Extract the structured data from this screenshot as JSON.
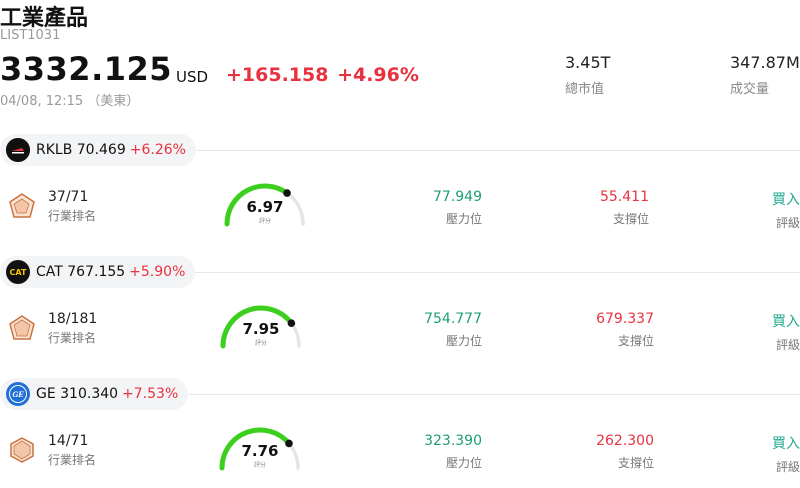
{
  "header": {
    "title": "工業產品",
    "code": "LIST1031",
    "price": "3332.125",
    "currency": "USD",
    "change": "+165.158 +4.96%",
    "timestamp": "04/08, 12:15 （美東）"
  },
  "stats": {
    "market_cap_value": "3.45T",
    "market_cap_label": "總市值",
    "volume_value": "347.87M",
    "volume_label": "成交量"
  },
  "colors": {
    "up": "#e8323f",
    "resistance": "#1e9e77",
    "rating": "#22a98e",
    "gauge_fill": "#3ccf1e",
    "gauge_track": "#e4e4ea"
  },
  "stocks": [
    {
      "ticker_price": "RKLB 70.469",
      "change_pct": "+6.26%",
      "logo_icon": "rocket-lab-logo",
      "rank": "37/71",
      "rank_label": "行業排名",
      "score": "6.97",
      "score_value": 6.97,
      "score_label": "評分",
      "resistance": "77.949",
      "resistance_label": "壓力位",
      "support": "55.411",
      "support_label": "支撐位",
      "rating": "買入",
      "rating_label": "評級"
    },
    {
      "ticker_price": "CAT 767.155",
      "change_pct": "+5.90%",
      "logo_icon": "caterpillar-logo",
      "logo_text": "CAT",
      "rank": "18/181",
      "rank_label": "行業排名",
      "score": "7.95",
      "score_value": 7.95,
      "score_label": "評分",
      "resistance": "754.777",
      "resistance_label": "壓力位",
      "support": "679.337",
      "support_label": "支撐位",
      "rating": "買入",
      "rating_label": "評級"
    },
    {
      "ticker_price": "GE 310.340",
      "change_pct": "+7.53%",
      "logo_icon": "ge-logo",
      "logo_text": "GE",
      "rank": "14/71",
      "rank_label": "行業排名",
      "score": "7.76",
      "score_value": 7.76,
      "score_label": "評分",
      "resistance": "323.390",
      "resistance_label": "壓力位",
      "support": "262.300",
      "support_label": "支撐位",
      "rating": "買入",
      "rating_label": "評級"
    }
  ]
}
